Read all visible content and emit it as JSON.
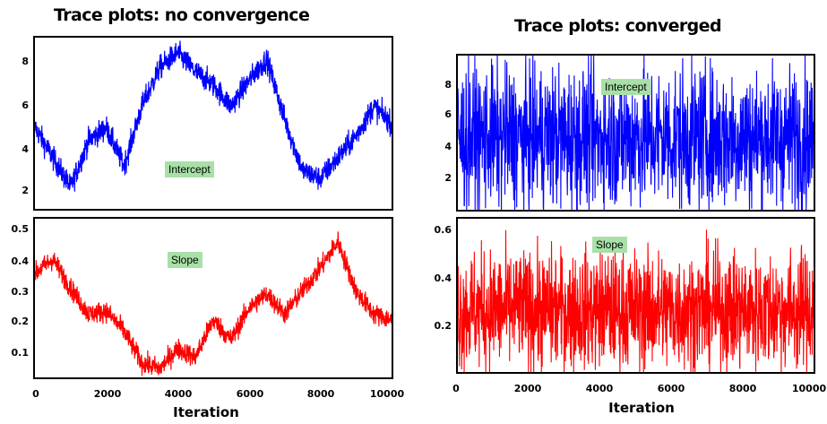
{
  "left_title": "Trace plots: no convergence",
  "right_title": "Trace plots: converged",
  "chart_data": [
    {
      "type": "line",
      "title": "Trace plots: no convergence",
      "panel": "top",
      "series": [
        {
          "name": "Intercept",
          "color": "#0000ff"
        }
      ],
      "label": "Intercept",
      "yticks": [
        "8",
        "6",
        "4",
        "2"
      ],
      "x": [
        0,
        500,
        1000,
        1500,
        2000,
        2500,
        3000,
        3500,
        4000,
        4500,
        5000,
        5500,
        6000,
        6500,
        7000,
        7500,
        8000,
        8500,
        9000,
        9500,
        10000
      ],
      "values": [
        5.0,
        3.6,
        2.2,
        4.4,
        5.0,
        3.2,
        6.0,
        7.8,
        8.5,
        7.6,
        7.0,
        6.0,
        7.2,
        8.2,
        5.4,
        3.0,
        2.6,
        3.6,
        4.6,
        6.0,
        5.2
      ],
      "ylim": [
        1.2,
        9.2
      ],
      "xlim": [
        0,
        10000
      ],
      "xlabel": ""
    },
    {
      "type": "line",
      "title": "Trace plots: no convergence",
      "panel": "bottom",
      "series": [
        {
          "name": "Slope",
          "color": "#ff0000"
        }
      ],
      "label": "Slope",
      "yticks": [
        "0.5",
        "0.4",
        "0.3",
        "0.2",
        "0.1"
      ],
      "x": [
        0,
        500,
        1000,
        1500,
        2000,
        2500,
        3000,
        3500,
        4000,
        4500,
        5000,
        5500,
        6000,
        6500,
        7000,
        7500,
        8000,
        8500,
        9000,
        9500,
        10000
      ],
      "values": [
        0.36,
        0.41,
        0.31,
        0.22,
        0.23,
        0.16,
        0.05,
        0.03,
        0.1,
        0.07,
        0.2,
        0.13,
        0.24,
        0.29,
        0.22,
        0.3,
        0.38,
        0.47,
        0.3,
        0.22,
        0.2
      ],
      "ylim": [
        0.0,
        0.55
      ],
      "xlim": [
        0,
        10000
      ],
      "xticks": [
        "0",
        "2000",
        "4000",
        "6000",
        "8000",
        "10000"
      ],
      "xlabel": "Iteration"
    },
    {
      "type": "line",
      "title": "Trace plots: converged",
      "panel": "top",
      "series": [
        {
          "name": "Intercept",
          "color": "#0000ff"
        }
      ],
      "label": "Intercept",
      "yticks": [
        "8",
        "6",
        "4",
        "2"
      ],
      "x": [
        0,
        10000
      ],
      "mean": 5.0,
      "spread": 3.8,
      "ylim": [
        0.8,
        9.8
      ],
      "xlim": [
        0,
        10000
      ],
      "xlabel": ""
    },
    {
      "type": "line",
      "title": "Trace plots: converged",
      "panel": "bottom",
      "series": [
        {
          "name": "Slope",
          "color": "#ff0000"
        }
      ],
      "label": "Slope",
      "yticks": [
        "0.6",
        "0.4",
        "0.2"
      ],
      "x": [
        0,
        10000
      ],
      "mean": 0.25,
      "spread": 0.22,
      "ylim": [
        0.0,
        0.62
      ],
      "xlim": [
        0,
        10000
      ],
      "xticks": [
        "0",
        "2000",
        "4000",
        "6000",
        "8000",
        "10000"
      ],
      "xlabel": "Iteration"
    }
  ]
}
